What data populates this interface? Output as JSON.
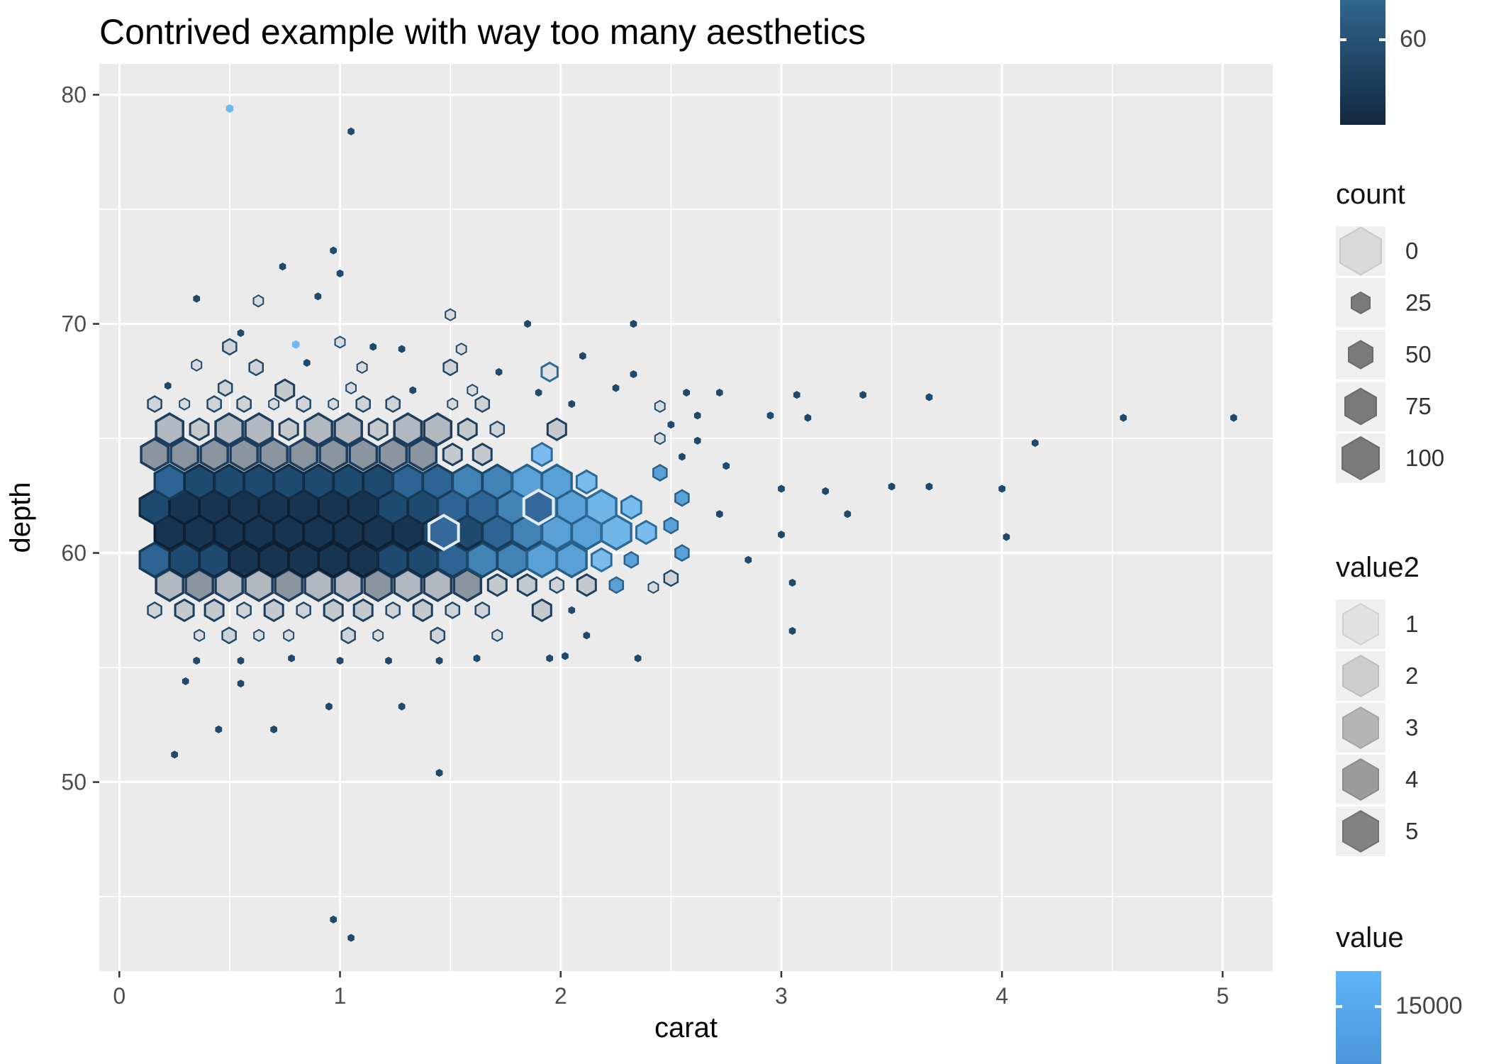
{
  "chart_data": {
    "type": "hexbin",
    "title": "Contrived example with way too many aesthetics",
    "xlabel": "carat",
    "ylabel": "depth",
    "x_ticks": [
      0,
      1,
      2,
      3,
      4,
      5
    ],
    "y_ticks": [
      50,
      60,
      70,
      80
    ],
    "x_minor": [
      0.5,
      1.5,
      2.5,
      3.5,
      4.5
    ],
    "y_minor": [
      45,
      55,
      65,
      75
    ],
    "xlim": [
      -0.091,
      5.227
    ],
    "ylim": [
      41.75,
      81.35
    ],
    "panel_bg": "#EBEBEB",
    "grid_color": "#FFFFFF",
    "axis_text_color": "#4d4d4d",
    "title_color": "#000000",
    "hex_step": 0.135,
    "cell_types": {
      "A": {
        "r": 24,
        "fill": "#173450",
        "stroke": "#0e2033",
        "sw": 3.5
      },
      "B": {
        "r": 24,
        "fill": "#1f4a70",
        "stroke": "#122c44",
        "sw": 3.5
      },
      "C": {
        "r": 24,
        "fill": "#2d6493",
        "stroke": "#173c59",
        "sw": 3.5
      },
      "D": {
        "r": 24,
        "fill": "#4183b4",
        "stroke": "#1d4a6b",
        "sw": 3.5
      },
      "E": {
        "r": 24,
        "fill": "#58a0d6",
        "stroke": "#27618c",
        "sw": 3.5
      },
      "F": {
        "r": 24,
        "fill": "#70b5e8",
        "stroke": "#2d6b99",
        "sw": 3.5
      },
      "M": {
        "r": 16,
        "fill": "#79bbec",
        "stroke": "#2d6b99",
        "sw": 3
      },
      "N": {
        "r": 11,
        "fill": "#58a0d6",
        "stroke": "#27618c",
        "sw": 2.5
      },
      "G": {
        "r": 22,
        "fill": "#8a95a0",
        "stroke": "#1d3e5e",
        "sw": 3.5
      },
      "H": {
        "r": 22,
        "fill": "#b2b8bf",
        "stroke": "#1d3e5e",
        "sw": 3.5
      },
      "I": {
        "r": 15,
        "fill": "#c4c9ce",
        "stroke": "#1d3e5e",
        "sw": 3
      },
      "J": {
        "r": 11,
        "fill": "#cfd3d7",
        "stroke": "#21496b",
        "sw": 2.5
      },
      "K": {
        "r": 8,
        "fill": "#d8dbde",
        "stroke": "#21496b",
        "sw": 2
      },
      "L": {
        "r": 5,
        "fill": "#21496b",
        "stroke": "#21496b",
        "sw": 1
      },
      "P": {
        "r": 5.5,
        "fill": "#6db9f2",
        "stroke": "#6db9f2",
        "sw": 1
      },
      "Q": {
        "r": 13,
        "fill": "#dfe1e3",
        "stroke": "#2d6b99",
        "sw": 3
      },
      "W": {
        "r": 24,
        "fill": "#34689a",
        "stroke": "#e4ecf3",
        "sw": 4
      }
    },
    "hex_rows": [
      {
        "y": 56.4,
        "x0": 0.2275,
        "cells": ".KJKK.JK.J.K..L."
      },
      {
        "y": 57.5,
        "x0": 0.16,
        "cells": "JIIJIJIIJIJJ.IL."
      },
      {
        "y": 58.6,
        "x0": 0.2275,
        "cells": "HGHHGHHGHHGIIJIN"
      },
      {
        "y": 59.7,
        "x0": 0.16,
        "cells": "CBBAAAAABBCDDEEMN"
      },
      {
        "y": 60.9,
        "x0": 0.2275,
        "cells": "AAAAAAAAABBCDEEFM"
      },
      {
        "y": 62.0,
        "x0": 0.16,
        "cells": "BAAAAAAABBCCDEEFM"
      },
      {
        "y": 63.1,
        "x0": 0.2275,
        "cells": "CBBBBBBBCCDDEEM."
      },
      {
        "y": 64.3,
        "x0": 0.16,
        "cells": "GGGGGGGGGGII.M.."
      },
      {
        "y": 65.4,
        "x0": 0.2275,
        "cells": "HIHHIHHIHHIJ.I.."
      },
      {
        "y": 66.5,
        "x0": 0.16,
        "cells": "JKJJKJKJJ.KJ..L."
      }
    ],
    "outliers": [
      [
        0.5,
        79.4,
        "P"
      ],
      [
        1.05,
        78.4,
        "L"
      ],
      [
        0.97,
        73.2,
        "L"
      ],
      [
        0.74,
        72.5,
        "L"
      ],
      [
        1.0,
        72.2,
        "L"
      ],
      [
        0.9,
        71.2,
        "L"
      ],
      [
        0.35,
        71.1,
        "L"
      ],
      [
        0.63,
        71.0,
        "K"
      ],
      [
        1.5,
        70.4,
        "K"
      ],
      [
        1.85,
        70.0,
        "L"
      ],
      [
        2.33,
        70.0,
        "L"
      ],
      [
        0.55,
        69.6,
        "L"
      ],
      [
        0.5,
        69.0,
        "J"
      ],
      [
        0.8,
        69.1,
        "P"
      ],
      [
        1.0,
        69.2,
        "K"
      ],
      [
        1.15,
        69.0,
        "L"
      ],
      [
        1.28,
        68.9,
        "L"
      ],
      [
        1.55,
        68.9,
        "K"
      ],
      [
        2.1,
        68.6,
        "L"
      ],
      [
        0.35,
        68.2,
        "K"
      ],
      [
        0.62,
        68.1,
        "J"
      ],
      [
        0.85,
        68.3,
        "L"
      ],
      [
        1.1,
        68.1,
        "K"
      ],
      [
        1.5,
        68.1,
        "J"
      ],
      [
        1.72,
        67.9,
        "L"
      ],
      [
        1.95,
        67.9,
        "Q"
      ],
      [
        2.33,
        67.8,
        "L"
      ],
      [
        0.22,
        67.3,
        "L"
      ],
      [
        0.48,
        67.2,
        "J"
      ],
      [
        0.75,
        67.1,
        "I"
      ],
      [
        1.05,
        67.2,
        "K"
      ],
      [
        1.33,
        67.1,
        "L"
      ],
      [
        1.6,
        67.1,
        "K"
      ],
      [
        1.9,
        67.0,
        "L"
      ],
      [
        2.25,
        67.2,
        "L"
      ],
      [
        2.57,
        67.0,
        "L"
      ],
      [
        2.72,
        67.0,
        "L"
      ],
      [
        3.07,
        66.9,
        "L"
      ],
      [
        3.37,
        66.9,
        "L"
      ],
      [
        3.67,
        66.8,
        "L"
      ],
      [
        2.45,
        66.4,
        "K"
      ],
      [
        2.62,
        66.0,
        "L"
      ],
      [
        2.95,
        66.0,
        "L"
      ],
      [
        3.12,
        65.9,
        "L"
      ],
      [
        4.55,
        65.9,
        "L"
      ],
      [
        5.05,
        65.9,
        "L"
      ],
      [
        2.5,
        65.6,
        "L"
      ],
      [
        2.45,
        65.0,
        "K"
      ],
      [
        2.62,
        64.9,
        "L"
      ],
      [
        4.15,
        64.8,
        "L"
      ],
      [
        2.55,
        64.2,
        "L"
      ],
      [
        2.75,
        63.8,
        "L"
      ],
      [
        2.45,
        63.5,
        "N"
      ],
      [
        3.0,
        62.8,
        "L"
      ],
      [
        3.2,
        62.7,
        "L"
      ],
      [
        3.5,
        62.9,
        "L"
      ],
      [
        3.67,
        62.9,
        "L"
      ],
      [
        4.0,
        62.8,
        "L"
      ],
      [
        2.55,
        62.4,
        "N"
      ],
      [
        2.72,
        61.7,
        "L"
      ],
      [
        3.3,
        61.7,
        "L"
      ],
      [
        2.5,
        61.2,
        "N"
      ],
      [
        3.0,
        60.8,
        "L"
      ],
      [
        4.02,
        60.7,
        "L"
      ],
      [
        2.55,
        60.0,
        "N"
      ],
      [
        2.85,
        59.7,
        "L"
      ],
      [
        2.5,
        58.9,
        "J"
      ],
      [
        3.05,
        58.7,
        "L"
      ],
      [
        2.42,
        58.5,
        "K"
      ],
      [
        3.05,
        56.6,
        "L"
      ],
      [
        2.02,
        55.5,
        "L"
      ],
      [
        2.35,
        55.4,
        "L"
      ],
      [
        1.95,
        55.4,
        "L"
      ],
      [
        0.35,
        55.3,
        "L"
      ],
      [
        0.55,
        55.3,
        "L"
      ],
      [
        0.78,
        55.4,
        "L"
      ],
      [
        1.0,
        55.3,
        "L"
      ],
      [
        1.22,
        55.3,
        "L"
      ],
      [
        1.45,
        55.3,
        "L"
      ],
      [
        1.62,
        55.4,
        "L"
      ],
      [
        1.45,
        50.4,
        "L"
      ],
      [
        0.25,
        51.2,
        "L"
      ],
      [
        0.45,
        52.3,
        "L"
      ],
      [
        0.7,
        52.3,
        "L"
      ],
      [
        0.95,
        53.3,
        "L"
      ],
      [
        1.28,
        53.3,
        "L"
      ],
      [
        0.55,
        54.3,
        "L"
      ],
      [
        0.3,
        54.4,
        "L"
      ],
      [
        0.97,
        44.0,
        "L"
      ],
      [
        1.05,
        43.2,
        "L"
      ],
      [
        1.47,
        60.9,
        "W"
      ],
      [
        1.9,
        62.0,
        "W"
      ]
    ],
    "legend_panel": {
      "colorbar_top": {
        "tick_label": "60",
        "color_top": "#31668f",
        "color_bottom": "#12283f"
      },
      "count": {
        "title": "count",
        "items": [
          {
            "label": "0",
            "size": 58,
            "fill": "#d9d9d9",
            "stroke": "#c8c8c8"
          },
          {
            "label": "25",
            "size": 26,
            "fill": "#7a7a7a",
            "stroke": "#6b6b6b"
          },
          {
            "label": "50",
            "size": 34,
            "fill": "#7a7a7a",
            "stroke": "#6b6b6b"
          },
          {
            "label": "75",
            "size": 44,
            "fill": "#7a7a7a",
            "stroke": "#6b6b6b"
          },
          {
            "label": "100",
            "size": 52,
            "fill": "#7a7a7a",
            "stroke": "#6b6b6b"
          }
        ]
      },
      "value2": {
        "title": "value2",
        "items": [
          {
            "label": "1",
            "size": 50,
            "fill": "#e2e2e2",
            "stroke": "#d2d2d2"
          },
          {
            "label": "2",
            "size": 50,
            "fill": "#cecece",
            "stroke": "#bebebe"
          },
          {
            "label": "3",
            "size": 50,
            "fill": "#b5b5b5",
            "stroke": "#a5a5a5"
          },
          {
            "label": "4",
            "size": 50,
            "fill": "#9b9b9b",
            "stroke": "#8b8b8b"
          },
          {
            "label": "5",
            "size": 50,
            "fill": "#828282",
            "stroke": "#727272"
          }
        ]
      },
      "value": {
        "title": "value",
        "tick_label": "15000",
        "color_top": "#5fb4f7",
        "color_bottom": "#3f86c9"
      }
    }
  }
}
